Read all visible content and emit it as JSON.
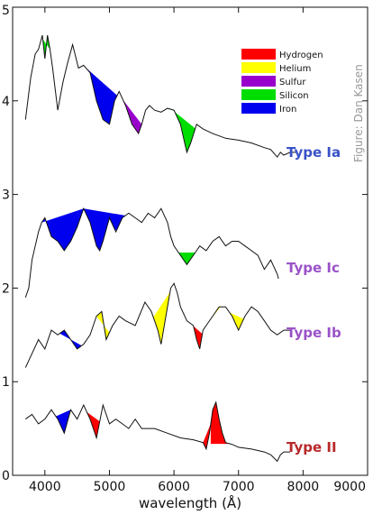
{
  "chart_data": {
    "type": "line",
    "xlabel": "wavelength (Å)",
    "ylabel": "",
    "xlim": [
      3500,
      9000
    ],
    "ylim": [
      0,
      5
    ],
    "x_ticks": [
      4000,
      5000,
      6000,
      7000,
      8000,
      9000
    ],
    "y_ticks": [
      0,
      1,
      2,
      3,
      4,
      5
    ],
    "grid": false,
    "legend_position": "top-right",
    "credit": "Figure: Dan Kasen",
    "elements": [
      {
        "name": "Hydrogen",
        "color": "#ff0000"
      },
      {
        "name": "Helium",
        "color": "#ffff00"
      },
      {
        "name": "Sulfur",
        "color": "#9900cc"
      },
      {
        "name": "Silicon",
        "color": "#00dd00"
      },
      {
        "name": "Iron",
        "color": "#0000ee"
      }
    ],
    "series": [
      {
        "name": "Type Ia",
        "label_color": "#3a52c8",
        "x": [
          3700,
          3780,
          3850,
          3900,
          3960,
          4000,
          4040,
          4080,
          4120,
          4200,
          4280,
          4350,
          4430,
          4520,
          4600,
          4700,
          4800,
          4900,
          5000,
          5080,
          5150,
          5250,
          5350,
          5450,
          5500,
          5560,
          5620,
          5700,
          5800,
          5900,
          6000,
          6100,
          6150,
          6200,
          6260,
          6350,
          6450,
          6600,
          6800,
          7000,
          7200,
          7400,
          7500,
          7600,
          7650,
          7700,
          7800,
          7900
        ],
        "y": [
          3.8,
          4.25,
          4.5,
          4.55,
          4.7,
          4.45,
          4.7,
          4.55,
          4.35,
          3.9,
          4.2,
          4.4,
          4.6,
          4.35,
          4.38,
          4.3,
          4.0,
          3.8,
          3.75,
          4.0,
          4.1,
          3.95,
          3.75,
          3.65,
          3.75,
          3.9,
          3.95,
          3.9,
          3.88,
          3.92,
          3.9,
          3.75,
          3.6,
          3.45,
          3.55,
          3.75,
          3.7,
          3.65,
          3.6,
          3.58,
          3.55,
          3.5,
          3.48,
          3.4,
          3.45,
          3.42,
          3.45,
          3.45
        ],
        "features": [
          {
            "element": "Silicon",
            "x": [
              3950,
              4080
            ],
            "depth_min": 4.35
          },
          {
            "element": "Iron",
            "x": [
              4630,
              5120
            ],
            "depth_min": 3.75
          },
          {
            "element": "Sulfur",
            "x": [
              5210,
              5500
            ],
            "depth_min": 3.65
          },
          {
            "element": "Silicon",
            "x": [
              5970,
              6330
            ],
            "depth_min": 3.45
          }
        ]
      },
      {
        "name": "Type Ic",
        "label_color": "#9a52c8",
        "x": [
          3700,
          3750,
          3800,
          3850,
          3900,
          3950,
          4000,
          4100,
          4200,
          4300,
          4400,
          4500,
          4600,
          4700,
          4800,
          4850,
          4900,
          5000,
          5100,
          5200,
          5300,
          5400,
          5500,
          5600,
          5700,
          5800,
          5900,
          5950,
          6000,
          6100,
          6200,
          6300,
          6400,
          6500,
          6600,
          6700,
          6800,
          6900,
          7000,
          7100,
          7200,
          7300,
          7400,
          7500,
          7600,
          7620
        ],
        "y": [
          1.9,
          2.0,
          2.3,
          2.45,
          2.6,
          2.7,
          2.75,
          2.55,
          2.5,
          2.4,
          2.5,
          2.65,
          2.85,
          2.7,
          2.45,
          2.4,
          2.5,
          2.75,
          2.6,
          2.75,
          2.8,
          2.75,
          2.7,
          2.8,
          2.75,
          2.85,
          2.7,
          2.55,
          2.45,
          2.35,
          2.25,
          2.35,
          2.45,
          2.4,
          2.5,
          2.55,
          2.45,
          2.5,
          2.5,
          2.45,
          2.4,
          2.35,
          2.2,
          2.3,
          2.15,
          2.1
        ],
        "features": [
          {
            "element": "Iron",
            "x": [
              3950,
              4600
            ],
            "depth_min": 2.35
          },
          {
            "element": "Iron",
            "x": [
              4600,
              5250
            ],
            "depth_min": 2.45
          },
          {
            "element": "Silicon",
            "x": [
              6070,
              6330
            ],
            "depth_min": 2.25
          }
        ]
      },
      {
        "name": "Type Ib",
        "label_color": "#9a52c8",
        "x": [
          3700,
          3800,
          3900,
          4000,
          4100,
          4200,
          4300,
          4400,
          4500,
          4600,
          4700,
          4800,
          4880,
          4950,
          5050,
          5150,
          5250,
          5400,
          5550,
          5650,
          5750,
          5800,
          5900,
          5950,
          6000,
          6050,
          6100,
          6200,
          6300,
          6350,
          6400,
          6450,
          6500,
          6600,
          6700,
          6800,
          6900,
          7000,
          7100,
          7200,
          7300,
          7400,
          7500,
          7600,
          7700,
          7800
        ],
        "y": [
          1.15,
          1.3,
          1.45,
          1.35,
          1.55,
          1.5,
          1.55,
          1.45,
          1.35,
          1.4,
          1.5,
          1.7,
          1.75,
          1.45,
          1.6,
          1.7,
          1.65,
          1.6,
          1.85,
          1.75,
          1.55,
          1.4,
          1.8,
          2.0,
          2.05,
          1.95,
          1.8,
          1.65,
          1.6,
          1.45,
          1.35,
          1.55,
          1.6,
          1.7,
          1.8,
          1.8,
          1.7,
          1.55,
          1.7,
          1.8,
          1.75,
          1.65,
          1.55,
          1.5,
          1.55,
          1.55
        ],
        "features": [
          {
            "element": "Iron",
            "x": [
              4230,
              4570
            ],
            "depth_min": 1.42
          },
          {
            "element": "Helium",
            "x": [
              4800,
              5000
            ],
            "depth_min": 1.45
          },
          {
            "element": "Helium",
            "x": [
              5680,
              5940
            ],
            "depth_min": 1.4
          },
          {
            "element": "Hydrogen",
            "x": [
              6250,
              6440
            ],
            "depth_min": 1.35
          },
          {
            "element": "Helium",
            "x": [
              6550,
              6720
            ],
            "depth_min": 1.55
          },
          {
            "element": "Helium",
            "x": [
              6860,
              7080
            ],
            "depth_min": 1.5
          }
        ]
      },
      {
        "name": "Type II",
        "label_color": "#b82828",
        "x": [
          3700,
          3800,
          3900,
          4000,
          4100,
          4200,
          4300,
          4400,
          4500,
          4600,
          4700,
          4800,
          4900,
          5000,
          5100,
          5200,
          5300,
          5400,
          5500,
          5700,
          5900,
          6100,
          6300,
          6450,
          6500,
          6550,
          6600,
          6650,
          6700,
          6750,
          6800,
          6900,
          7000,
          7200,
          7400,
          7500,
          7600,
          7650,
          7700,
          7800
        ],
        "y": [
          0.6,
          0.65,
          0.55,
          0.6,
          0.7,
          0.6,
          0.45,
          0.7,
          0.6,
          0.75,
          0.6,
          0.4,
          0.75,
          0.55,
          0.6,
          0.55,
          0.5,
          0.6,
          0.5,
          0.5,
          0.45,
          0.4,
          0.38,
          0.35,
          0.28,
          0.45,
          0.7,
          0.78,
          0.6,
          0.45,
          0.35,
          0.33,
          0.3,
          0.28,
          0.25,
          0.22,
          0.15,
          0.22,
          0.25,
          0.25
        ],
        "features": [
          {
            "element": "Iron",
            "x": [
              4170,
              4400
            ],
            "depth_min": 0.4
          },
          {
            "element": "Hydrogen",
            "x": [
              4650,
              4850
            ],
            "depth_min": 0.42
          },
          {
            "element": "Hydrogen",
            "x": [
              6570,
              6870
            ],
            "depth_min": 0.38,
            "emission": true
          },
          {
            "element": "Hydrogen",
            "x": [
              6450,
              6570
            ],
            "depth_min": 0.28
          }
        ]
      }
    ]
  }
}
